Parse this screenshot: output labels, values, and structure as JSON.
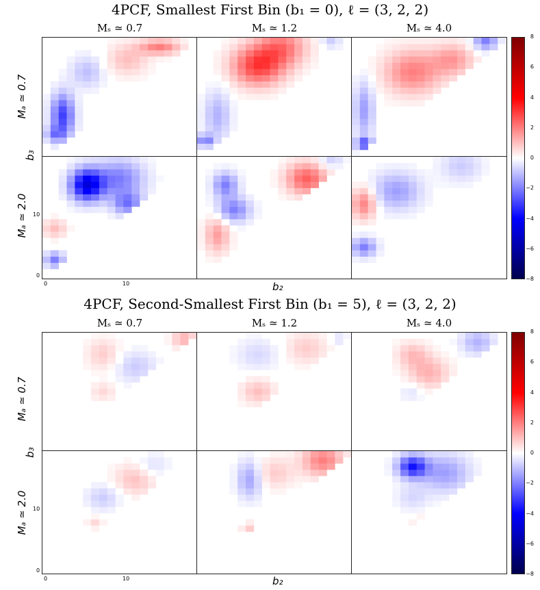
{
  "figures": [
    {
      "title": "4PCF, Smallest First Bin (b₁ = 0), ℓ = (3, 2, 2)",
      "col_titles": [
        "Mₛ ≃ 0.7",
        "Mₛ ≃ 1.2",
        "Mₛ ≃ 4.0"
      ],
      "row_labels": [
        "Mₐ ≃ 0.7",
        "Mₐ ≃ 2.0"
      ],
      "ylabel": "b₃",
      "xlabel": "b₂"
    },
    {
      "title": "4PCF, Second-Smallest First Bin (b₁ = 5), ℓ = (3, 2, 2)",
      "col_titles": [
        "Mₛ ≃ 0.7",
        "Mₛ ≃ 1.2",
        "Mₛ ≃ 4.0"
      ],
      "row_labels": [
        "Mₐ ≃ 0.7",
        "Mₐ ≃ 2.0"
      ],
      "ylabel": "b₃",
      "xlabel": "b₂"
    }
  ],
  "axis_ticks": {
    "y": [
      "0",
      "10"
    ],
    "x": [
      "0",
      "10"
    ]
  },
  "colorbar": {
    "ticks": [
      "8",
      "6",
      "4",
      "2",
      "0",
      "−2",
      "−4",
      "−6",
      "−8"
    ],
    "range": [
      -8,
      8
    ],
    "colormap": "seismic",
    "colors": [
      "#7f0000",
      "#ff0000",
      "#ffffff",
      "#0000ff",
      "#00004d"
    ]
  },
  "chart_data": [
    {
      "type": "heatmap",
      "title": "4PCF, Smallest First Bin (b₁ = 0), ℓ = (3, 2, 2)",
      "xlabel": "b₂",
      "ylabel": "b₃",
      "xlim": [
        0,
        19
      ],
      "ylim": [
        0,
        19
      ],
      "color_range": [
        -8,
        8
      ],
      "panels": [
        {
          "row": "Mₐ ≃ 0.7",
          "col": "Mₛ ≃ 0.7",
          "features": [
            {
              "b2": 2,
              "b3": 6,
              "v": -3.0,
              "r": 1.4,
              "sy": 3.5
            },
            {
              "b2": 14,
              "b3": 17,
              "v": 2.0,
              "r": 2.5,
              "sy": 1.2
            },
            {
              "b2": 10,
              "b3": 15,
              "v": 1.0,
              "r": 2.5
            },
            {
              "b2": 5,
              "b3": 13,
              "v": -1.0,
              "r": 2.0,
              "sy": 2.5
            },
            {
              "b2": 1,
              "b3": 3,
              "v": -1.5,
              "r": 1.2
            }
          ]
        },
        {
          "row": "Mₐ ≃ 0.7",
          "col": "Mₛ ≃ 1.2",
          "features": [
            {
              "b2": 7,
              "b3": 14,
              "v": 3.0,
              "r": 3.2
            },
            {
              "b2": 10,
              "b3": 17,
              "v": 2.0,
              "r": 3.0
            },
            {
              "b2": 2,
              "b3": 6,
              "v": -1.2,
              "r": 1.6,
              "sy": 4.0
            },
            {
              "b2": 0.5,
              "b3": 2,
              "v": -2.0,
              "r": 1.0
            },
            {
              "b2": 16,
              "b3": 18,
              "v": -0.8,
              "r": 1.2
            }
          ]
        },
        {
          "row": "Mₐ ≃ 0.7",
          "col": "Mₛ ≃ 4.0",
          "features": [
            {
              "b2": 7,
              "b3": 13,
              "v": 2.0,
              "r": 3.5
            },
            {
              "b2": 12,
              "b3": 15,
              "v": 1.5,
              "r": 2.5
            },
            {
              "b2": 1,
              "b3": 7,
              "v": -1.5,
              "r": 1.2,
              "sy": 4.5
            },
            {
              "b2": 16,
              "b3": 18,
              "v": -2.0,
              "r": 1.5
            },
            {
              "b2": 1,
              "b3": 1.5,
              "v": -2.5,
              "r": 1.0
            }
          ]
        },
        {
          "row": "Mₐ ≃ 2.0",
          "col": "Mₛ ≃ 0.7",
          "features": [
            {
              "b2": 5,
              "b3": 14,
              "v": -4.5,
              "r": 2.0,
              "sy": 2.5
            },
            {
              "b2": 9,
              "b3": 15,
              "v": -2.0,
              "r": 3.0
            },
            {
              "b2": 10,
              "b3": 11,
              "v": -2.0,
              "r": 1.8
            },
            {
              "b2": 1,
              "b3": 2,
              "v": -2.0,
              "r": 1.2
            },
            {
              "b2": 1,
              "b3": 7,
              "v": 1.0,
              "r": 1.5
            }
          ]
        },
        {
          "row": "Mₐ ≃ 2.0",
          "col": "Mₛ ≃ 1.2",
          "features": [
            {
              "b2": 13,
              "b3": 15,
              "v": 2.5,
              "r": 2.5
            },
            {
              "b2": 3,
              "b3": 14,
              "v": -2.0,
              "r": 1.5,
              "sy": 2.0
            },
            {
              "b2": 4,
              "b3": 10,
              "v": -2.0,
              "r": 2.0
            },
            {
              "b2": 2,
              "b3": 6,
              "v": 1.5,
              "r": 1.5,
              "sy": 3.0
            },
            {
              "b2": 16,
              "b3": 18,
              "v": -0.8,
              "r": 1.5
            }
          ]
        },
        {
          "row": "Mₐ ≃ 2.0",
          "col": "Mₛ ≃ 4.0",
          "features": [
            {
              "b2": 1,
              "b3": 11,
              "v": 2.0,
              "r": 1.5,
              "sy": 2.5
            },
            {
              "b2": 5,
              "b3": 13,
              "v": -1.5,
              "r": 3.0
            },
            {
              "b2": 1,
              "b3": 4,
              "v": -2.0,
              "r": 1.5
            },
            {
              "b2": 13,
              "b3": 17,
              "v": -0.8,
              "r": 2.5
            }
          ]
        }
      ]
    },
    {
      "type": "heatmap",
      "title": "4PCF, Second-Smallest First Bin (b₁ = 5), ℓ = (3, 2, 2)",
      "xlabel": "b₂",
      "ylabel": "b₃",
      "xlim": [
        0,
        19
      ],
      "ylim": [
        0,
        19
      ],
      "color_range": [
        -8,
        8
      ],
      "panels": [
        {
          "row": "Mₐ ≃ 0.7",
          "col": "Mₛ ≃ 0.7",
          "features": [
            {
              "b2": 17,
              "b3": 17.5,
              "v": 1.2,
              "r": 1.5
            },
            {
              "b2": 7,
              "b3": 15,
              "v": 0.8,
              "r": 2.0,
              "sy": 2.5
            },
            {
              "b2": 11,
              "b3": 13,
              "v": -0.8,
              "r": 2.5
            },
            {
              "b2": 7,
              "b3": 9,
              "v": 0.6,
              "r": 1.5
            }
          ]
        },
        {
          "row": "Mₐ ≃ 0.7",
          "col": "Mₛ ≃ 1.2",
          "features": [
            {
              "b2": 13,
              "b3": 16,
              "v": 0.8,
              "r": 2.5
            },
            {
              "b2": 7,
              "b3": 9,
              "v": 1.0,
              "r": 2.0
            },
            {
              "b2": 7,
              "b3": 15,
              "v": -0.6,
              "r": 2.5
            },
            {
              "b2": 17,
              "b3": 17.5,
              "v": -0.5,
              "r": 1.0
            }
          ]
        },
        {
          "row": "Mₐ ≃ 0.7",
          "col": "Mₛ ≃ 4.0",
          "features": [
            {
              "b2": 9,
              "b3": 12,
              "v": 1.2,
              "r": 2.5
            },
            {
              "b2": 7,
              "b3": 15,
              "v": 1.0,
              "r": 2.0,
              "sy": 2.0
            },
            {
              "b2": 15,
              "b3": 17,
              "v": -1.2,
              "r": 2.0
            },
            {
              "b2": 7,
              "b3": 9,
              "v": -0.5,
              "r": 1.5
            }
          ]
        },
        {
          "row": "Mₐ ≃ 2.0",
          "col": "Mₛ ≃ 0.7",
          "features": [
            {
              "b2": 11,
              "b3": 14,
              "v": 1.0,
              "r": 2.5
            },
            {
              "b2": 7,
              "b3": 11,
              "v": -0.8,
              "r": 2.0
            },
            {
              "b2": 13,
              "b3": 16,
              "v": -0.6,
              "r": 2.0
            },
            {
              "b2": 6,
              "b3": 7,
              "v": 0.6,
              "r": 1.0
            }
          ]
        },
        {
          "row": "Mₐ ≃ 2.0",
          "col": "Mₛ ≃ 1.2",
          "features": [
            {
              "b2": 15,
              "b3": 17,
              "v": 2.0,
              "r": 2.5
            },
            {
              "b2": 6,
              "b3": 14,
              "v": -1.5,
              "r": 1.5,
              "sy": 3.0
            },
            {
              "b2": 9,
              "b3": 15,
              "v": 0.8,
              "r": 2.5
            },
            {
              "b2": 6,
              "b3": 6,
              "v": 0.8,
              "r": 1.0
            }
          ]
        },
        {
          "row": "Mₐ ≃ 2.0",
          "col": "Mₛ ≃ 4.0",
          "features": [
            {
              "b2": 7,
              "b3": 16,
              "v": -3.5,
              "r": 1.8
            },
            {
              "b2": 11,
              "b3": 15,
              "v": -1.5,
              "r": 3.0
            },
            {
              "b2": 7,
              "b3": 11,
              "v": -0.6,
              "r": 2.0
            },
            {
              "b2": 8,
              "b3": 7,
              "v": 0.6,
              "r": 1.0
            }
          ]
        }
      ]
    }
  ]
}
